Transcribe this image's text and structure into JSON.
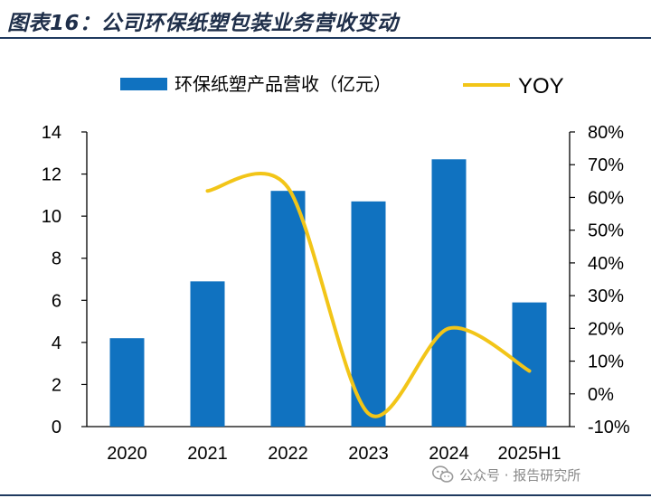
{
  "header": {
    "title": "图表16：公司环保纸塑包装业务营收变动"
  },
  "watermark": {
    "text": "公众号 · 报告研究所"
  },
  "colors": {
    "bar": "#1072c0",
    "line": "#f2c518",
    "axis": "#000000"
  },
  "chart_data": {
    "type": "bar",
    "categories": [
      "2020",
      "2021",
      "2022",
      "2023",
      "2024",
      "2025H1"
    ],
    "series": [
      {
        "name": "环保纸塑产品营收（亿元）",
        "type": "bar",
        "axis": "left",
        "values": [
          4.2,
          6.9,
          11.2,
          10.7,
          12.7,
          5.9
        ]
      },
      {
        "name": "YOY",
        "type": "line",
        "axis": "right",
        "values": [
          null,
          62,
          63,
          -6,
          20,
          7
        ]
      }
    ],
    "left_axis": {
      "ylim": [
        0,
        14
      ],
      "ticks": [
        "0",
        "2",
        "4",
        "6",
        "8",
        "10",
        "12",
        "14"
      ]
    },
    "right_axis": {
      "ylim": [
        -10,
        80
      ],
      "ticks": [
        "-10%",
        "0%",
        "10%",
        "20%",
        "30%",
        "40%",
        "50%",
        "60%",
        "70%",
        "80%"
      ]
    },
    "legend_position": "top"
  }
}
